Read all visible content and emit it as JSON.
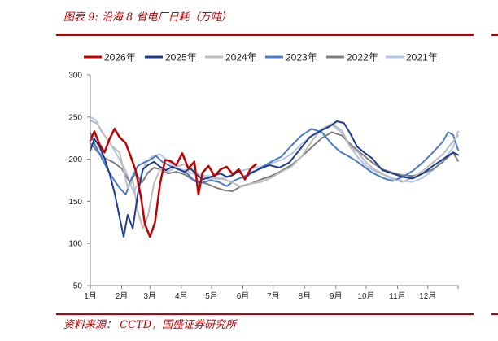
{
  "header": {
    "title": "图表 9:  沿海 8 省电厂日耗（万吨）"
  },
  "footer": {
    "source": "资料来源：  CCTD，国盛证券研究所"
  },
  "chart_data": {
    "type": "line",
    "title": "",
    "xlabel": "",
    "ylabel": "",
    "ylim": [
      50,
      300
    ],
    "yticks": [
      50,
      100,
      150,
      200,
      250,
      300
    ],
    "x_ticks": [
      "1月",
      "2月",
      "3月",
      "4月",
      "5月",
      "6月",
      "7月",
      "8月",
      "9月",
      "10月",
      "11月",
      "12月"
    ],
    "x_unit": "day of year",
    "legend_position": "top",
    "grid": false,
    "series": [
      {
        "name": "2026年",
        "color": "#c00000",
        "width": 2.5,
        "x": [
          1,
          5,
          10,
          15,
          20,
          25,
          30,
          36,
          41,
          46,
          51,
          55,
          60,
          65,
          70,
          75,
          80,
          86,
          92,
          98,
          104,
          108,
          112,
          118,
          124,
          130,
          136,
          142,
          148,
          154,
          160,
          165
        ],
        "values": [
          222,
          233,
          218,
          208,
          224,
          236,
          226,
          219,
          203,
          186,
          156,
          123,
          108,
          125,
          171,
          199,
          198,
          193,
          207,
          189,
          197,
          158,
          184,
          192,
          180,
          188,
          191,
          182,
          188,
          176,
          189,
          194
        ]
      },
      {
        "name": "2025年",
        "color": "#1f3d8f",
        "width": 2,
        "x": [
          1,
          5,
          10,
          15,
          20,
          25,
          30,
          34,
          38,
          43,
          48,
          53,
          58,
          64,
          70,
          76,
          82,
          88,
          94,
          100,
          106,
          112,
          118,
          124,
          130,
          136,
          142,
          148,
          154,
          160,
          168,
          178,
          188,
          198,
          208,
          218,
          228,
          238,
          245,
          252,
          258,
          265,
          272,
          280,
          290,
          300,
          310,
          320,
          330,
          340,
          350,
          360,
          365
        ],
        "values": [
          210,
          224,
          215,
          201,
          183,
          160,
          131,
          108,
          134,
          118,
          159,
          188,
          193,
          197,
          191,
          187,
          191,
          188,
          185,
          189,
          182,
          176,
          178,
          181,
          183,
          179,
          181,
          186,
          177,
          184,
          188,
          193,
          190,
          196,
          211,
          226,
          233,
          239,
          245,
          243,
          231,
          215,
          208,
          201,
          187,
          183,
          179,
          177,
          183,
          192,
          200,
          208,
          205
        ]
      },
      {
        "name": "2024年",
        "color": "#bdbdbd",
        "width": 2,
        "x": [
          1,
          8,
          15,
          22,
          30,
          38,
          43,
          48,
          53,
          58,
          64,
          70,
          78,
          86,
          94,
          102,
          110,
          118,
          126,
          134,
          142,
          150,
          160,
          170,
          180,
          190,
          200,
          210,
          220,
          230,
          240,
          250,
          258,
          266,
          274,
          282,
          290,
          300,
          310,
          320,
          330,
          340,
          350,
          360,
          365
        ],
        "values": [
          246,
          242,
          228,
          216,
          208,
          166,
          175,
          138,
          118,
          132,
          171,
          188,
          185,
          191,
          194,
          188,
          181,
          176,
          178,
          176,
          172,
          167,
          171,
          173,
          178,
          185,
          191,
          203,
          221,
          236,
          242,
          234,
          215,
          208,
          196,
          188,
          183,
          176,
          173,
          178,
          186,
          196,
          206,
          221,
          228
        ]
      },
      {
        "name": "2023年",
        "color": "#4a7cc9",
        "width": 2,
        "x": [
          1,
          6,
          12,
          18,
          24,
          30,
          36,
          42,
          48,
          54,
          60,
          66,
          72,
          80,
          88,
          96,
          104,
          112,
          120,
          128,
          136,
          144,
          152,
          160,
          170,
          180,
          190,
          200,
          210,
          220,
          230,
          240,
          248,
          256,
          264,
          272,
          280,
          290,
          300,
          310,
          320,
          330,
          340,
          350,
          355,
          360,
          365
        ],
        "values": [
          231,
          216,
          202,
          188,
          176,
          166,
          158,
          178,
          192,
          196,
          199,
          204,
          197,
          192,
          188,
          184,
          174,
          172,
          175,
          173,
          168,
          175,
          179,
          183,
          190,
          197,
          203,
          216,
          228,
          236,
          232,
          218,
          209,
          204,
          198,
          191,
          184,
          178,
          174,
          179,
          186,
          196,
          208,
          221,
          232,
          229,
          211
        ]
      },
      {
        "name": "2022年",
        "color": "#7f7f7f",
        "width": 2,
        "x": [
          1,
          8,
          16,
          24,
          32,
          40,
          46,
          52,
          58,
          64,
          70,
          78,
          86,
          94,
          102,
          110,
          118,
          126,
          134,
          142,
          150,
          160,
          170,
          180,
          190,
          200,
          210,
          220,
          230,
          240,
          250,
          260,
          270,
          280,
          290,
          300,
          310,
          320,
          330,
          340,
          350,
          360,
          365
        ],
        "values": [
          219,
          209,
          201,
          196,
          189,
          173,
          183,
          172,
          184,
          190,
          188,
          183,
          185,
          182,
          176,
          173,
          170,
          166,
          163,
          162,
          168,
          171,
          176,
          180,
          186,
          193,
          203,
          214,
          225,
          232,
          228,
          216,
          206,
          196,
          188,
          184,
          181,
          180,
          183,
          188,
          197,
          208,
          198
        ]
      },
      {
        "name": "2021年",
        "color": "#b4c7e7",
        "width": 2,
        "x": [
          1,
          6,
          12,
          20,
          28,
          36,
          44,
          50,
          56,
          62,
          70,
          78,
          86,
          94,
          102,
          110,
          118,
          126,
          134,
          142,
          150,
          160,
          170,
          180,
          190,
          200,
          210,
          220,
          230,
          240,
          250,
          258,
          266,
          274,
          282,
          290,
          300,
          310,
          320,
          330,
          340,
          350,
          360,
          365
        ],
        "values": [
          250,
          247,
          233,
          220,
          204,
          186,
          160,
          177,
          196,
          203,
          206,
          198,
          190,
          187,
          183,
          181,
          180,
          176,
          178,
          182,
          186,
          189,
          191,
          195,
          199,
          206,
          218,
          228,
          236,
          241,
          231,
          215,
          202,
          192,
          186,
          182,
          178,
          174,
          173,
          178,
          187,
          198,
          214,
          233
        ]
      }
    ]
  }
}
